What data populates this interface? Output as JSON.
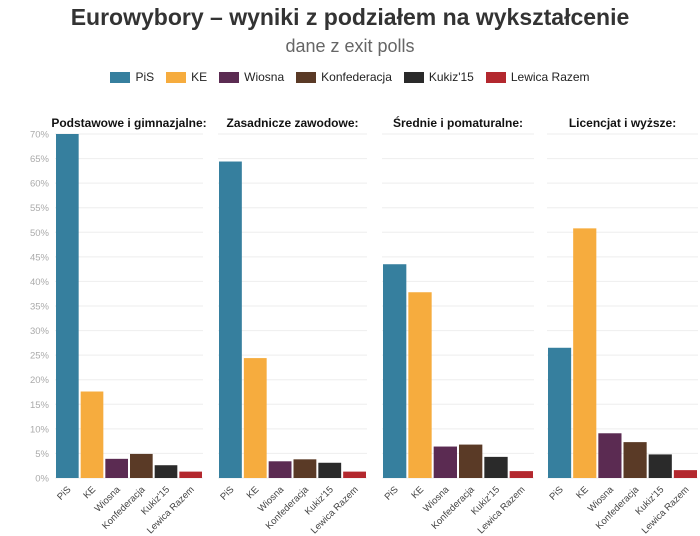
{
  "chart_data": [
    {
      "type": "bar",
      "title": "Podstawowe i gimnazjalne:",
      "categories": [
        "PiS",
        "KE",
        "Wiosna",
        "Konfederacja",
        "Kukiz'15",
        "Lewica Razem"
      ],
      "values": [
        70.0,
        17.6,
        3.9,
        4.9,
        2.6,
        1.3
      ],
      "ylim": [
        0,
        70
      ]
    },
    {
      "type": "bar",
      "title": "Zasadnicze zawodowe:",
      "categories": [
        "PiS",
        "KE",
        "Wiosna",
        "Konfederacja",
        "Kukiz'15",
        "Lewica Razem"
      ],
      "values": [
        64.4,
        24.4,
        3.4,
        3.8,
        3.1,
        1.3
      ],
      "ylim": [
        0,
        70
      ]
    },
    {
      "type": "bar",
      "title": "Średnie i pomaturalne:",
      "categories": [
        "PiS",
        "KE",
        "Wiosna",
        "Konfederacja",
        "Kukiz'15",
        "Lewica Razem"
      ],
      "values": [
        43.5,
        37.8,
        6.4,
        6.8,
        4.3,
        1.4
      ],
      "ylim": [
        0,
        70
      ]
    },
    {
      "type": "bar",
      "title": "Licencjat i wyższe:",
      "categories": [
        "PiS",
        "KE",
        "Wiosna",
        "Konfederacja",
        "Kukiz'15",
        "Lewica Razem"
      ],
      "values": [
        26.5,
        50.8,
        9.1,
        7.3,
        4.8,
        1.6
      ],
      "ylim": [
        0,
        70
      ]
    }
  ],
  "title": "Eurowybory – wyniki z podziałem na wykształcenie",
  "subtitle": "dane z exit polls",
  "legend": [
    {
      "label": "PiS",
      "color": "#367f9e"
    },
    {
      "label": "KE",
      "color": "#f6ac3e"
    },
    {
      "label": "Wiosna",
      "color": "#5b2b52"
    },
    {
      "label": "Konfederacja",
      "color": "#5a3a26"
    },
    {
      "label": "Kukiz'15",
      "color": "#2a2a2a"
    },
    {
      "label": "Lewica Razem",
      "color": "#b3282e"
    }
  ],
  "y_ticks": [
    "0%",
    "5%",
    "10%",
    "15%",
    "20%",
    "25%",
    "30%",
    "35%",
    "40%",
    "45%",
    "50%",
    "55%",
    "60%",
    "65%",
    "70%"
  ],
  "grid": true
}
